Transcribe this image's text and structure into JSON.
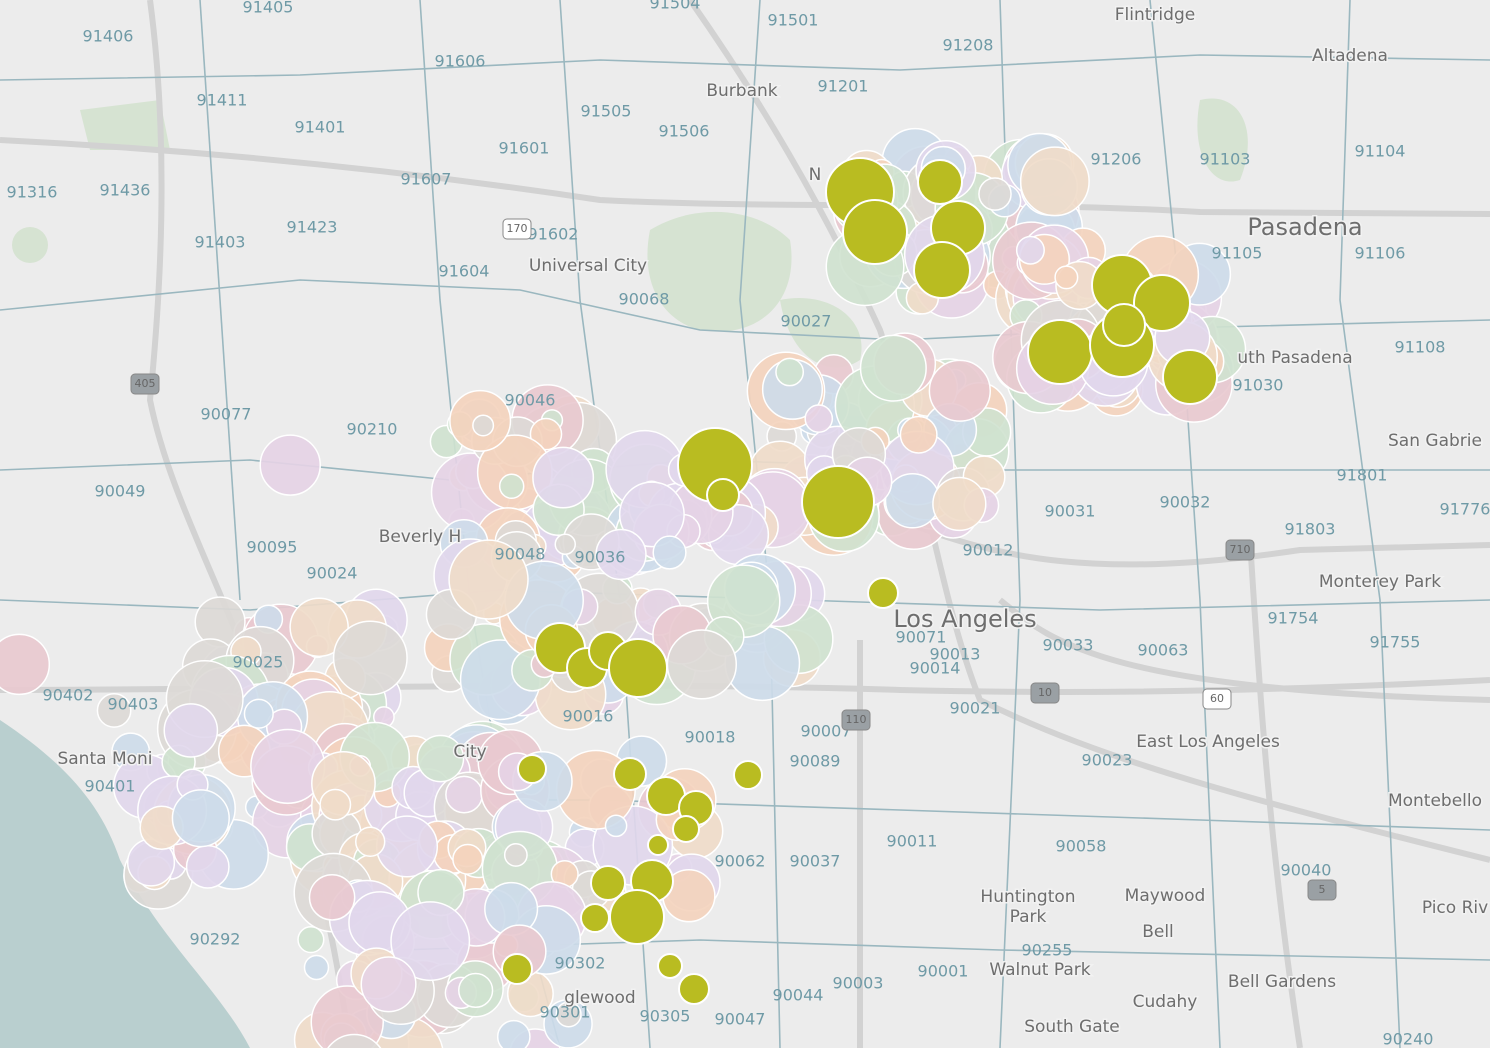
{
  "places": [
    "Flintridge",
    "Altadena",
    "Burbank",
    "N",
    "Pasadena",
    "Universal City",
    "uth Pasadena",
    "San Gabrie",
    "Beverly H",
    "Monterey Park",
    "Los Angeles",
    "Santa Moni",
    "City",
    "East Los Angeles",
    "Montebello",
    "Huntington",
    "Park",
    "Maywood",
    "Bell",
    "Pico Riv",
    "Walnut Park",
    "Bell Gardens",
    "Cudahy",
    "South Gate",
    "glewood"
  ],
  "zip_codes": [
    "91405",
    "91504",
    "91406",
    "91501",
    "91208",
    "91606",
    "91201",
    "91411",
    "91505",
    "91401",
    "91506",
    "91601",
    "91206",
    "91103",
    "91104",
    "91316",
    "91436",
    "91607",
    "91423",
    "91403",
    "91602",
    "91105",
    "91106",
    "91604",
    "90068",
    "90027",
    "91108",
    "91030",
    "90077",
    "90046",
    "90210",
    "90049",
    "90031",
    "90032",
    "91801",
    "91803",
    "91776",
    "90095",
    "90048",
    "90036",
    "90012",
    "90024",
    "91754",
    "91755",
    "90071",
    "90013",
    "90033",
    "90063",
    "90014",
    "90025",
    "90402",
    "90403",
    "90016",
    "90021",
    "90018",
    "90007",
    "90089",
    "90023",
    "90401",
    "90011",
    "90058",
    "90062",
    "90037",
    "90040",
    "90292",
    "90255",
    "90001",
    "90003",
    "90044",
    "90305",
    "90047",
    "90301",
    "90302",
    "90240"
  ],
  "highways": [
    "170",
    "405",
    "110",
    "10",
    "60",
    "5",
    "710"
  ]
}
